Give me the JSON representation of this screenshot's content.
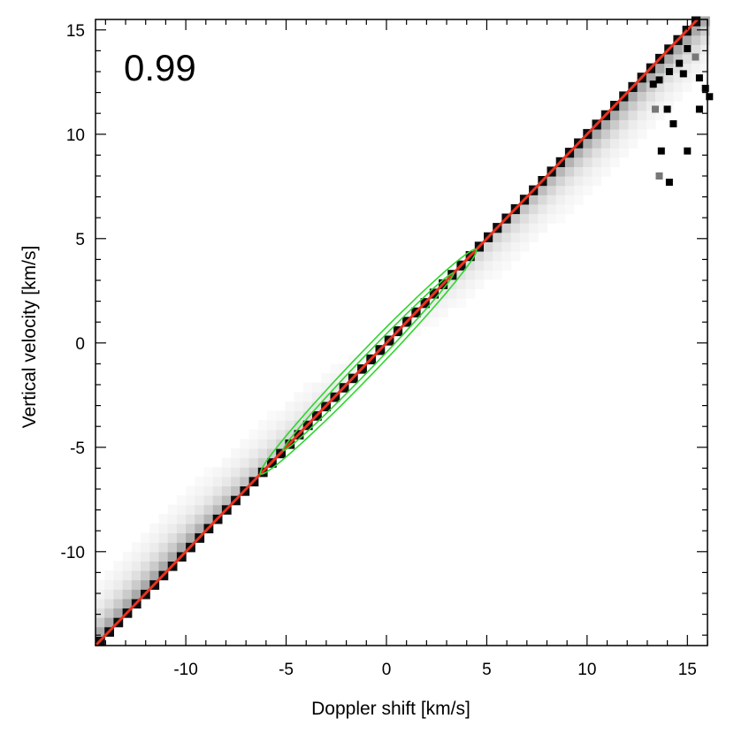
{
  "chart_data": {
    "type": "scatter",
    "title": "",
    "annotation": "0.99",
    "xlabel": "Doppler shift [km/s]",
    "ylabel": "Vertical velocity [km/s]",
    "xlim": [
      -14.5,
      16.0
    ],
    "ylim": [
      -14.5,
      15.5
    ],
    "xticks": [
      -10,
      -5,
      0,
      5,
      10,
      15
    ],
    "yticks": [
      -10,
      -5,
      0,
      5,
      10,
      15
    ],
    "xtick_labels": [
      "-10",
      "-5",
      "0",
      "5",
      "10",
      "15"
    ],
    "ytick_labels": [
      "-10",
      "-5",
      "0",
      "5",
      "10",
      "15"
    ],
    "grid": false,
    "density_histogram": {
      "colormap": "greyscale-inverted",
      "along_identity_center": -0.15,
      "core_width": 0.35,
      "spread_below_diagonal_positive_side": 4.5,
      "spread_above_diagonal_negative_side": 4.5
    },
    "sparse_points": [
      [
        13.6,
        12.6
      ],
      [
        14.1,
        13.0
      ],
      [
        14.6,
        13.4
      ],
      [
        15.0,
        14.1
      ],
      [
        15.4,
        13.7
      ],
      [
        14.8,
        12.9
      ],
      [
        15.9,
        12.2
      ],
      [
        15.6,
        12.7
      ],
      [
        16.1,
        11.8
      ],
      [
        13.4,
        11.2
      ],
      [
        14.0,
        11.2
      ],
      [
        15.6,
        11.2
      ],
      [
        13.7,
        9.2
      ],
      [
        15.0,
        9.2
      ],
      [
        13.6,
        8.0
      ],
      [
        14.1,
        7.7
      ],
      [
        14.3,
        10.5
      ],
      [
        13.3,
        12.4
      ]
    ],
    "series": [
      {
        "type": "line",
        "x": [
          -14.5,
          15.5
        ],
        "y": [
          -14.5,
          15.5
        ],
        "color": "#e8321e"
      },
      {
        "type": "contour",
        "color": "#2ed62e",
        "center": [
          -0.9,
          -0.9
        ],
        "major_half_length": 7.6,
        "minor_half_width": 0.55
      },
      {
        "type": "contour",
        "color": "#2ed62e",
        "center": [
          -0.9,
          -0.9
        ],
        "major_half_length": 6.0,
        "minor_half_width": 0.32
      }
    ]
  }
}
